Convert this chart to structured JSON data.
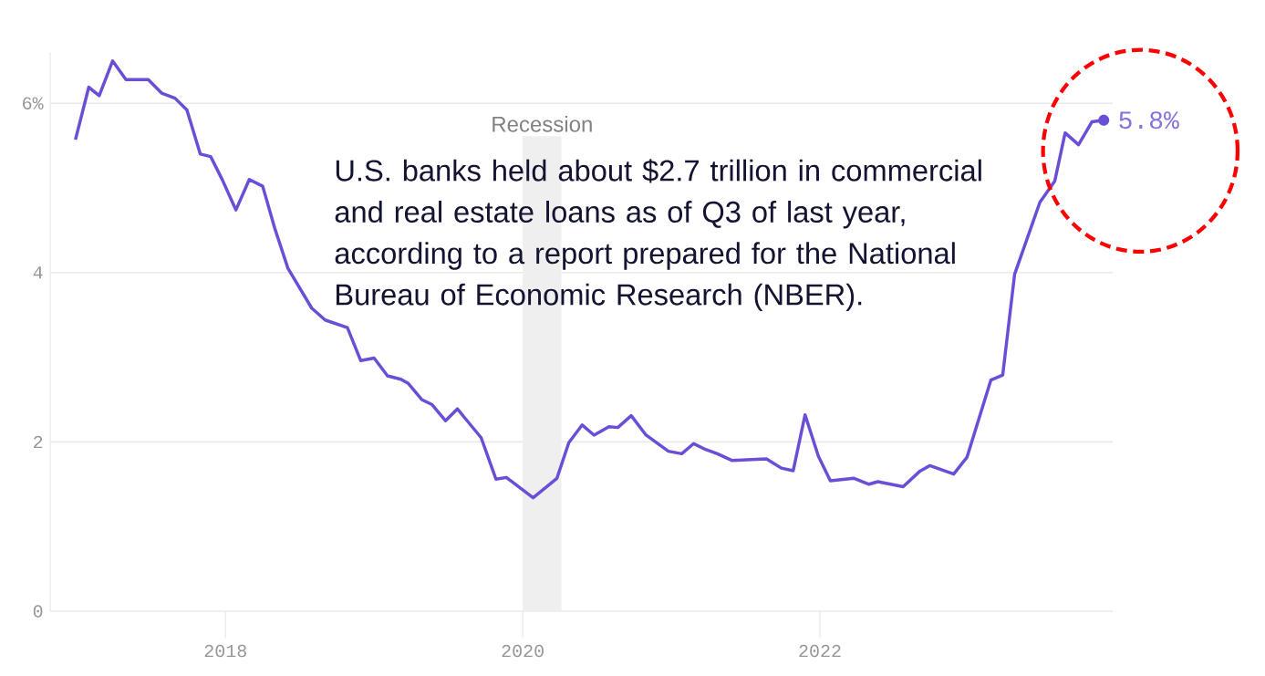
{
  "chart_data": {
    "type": "line",
    "x": [
      2016.99,
      2017.08,
      2017.15,
      2017.24,
      2017.33,
      2017.48,
      2017.57,
      2017.66,
      2017.74,
      2017.83,
      2017.9,
      2017.98,
      2018.07,
      2018.16,
      2018.25,
      2018.33,
      2018.42,
      2018.58,
      2018.67,
      2018.82,
      2018.91,
      2019.0,
      2019.09,
      2019.18,
      2019.23,
      2019.32,
      2019.39,
      2019.48,
      2019.56,
      2019.72,
      2019.82,
      2019.89,
      2020.07,
      2020.23,
      2020.31,
      2020.4,
      2020.48,
      2020.58,
      2020.64,
      2020.73,
      2020.83,
      2020.98,
      2021.07,
      2021.15,
      2021.23,
      2021.31,
      2021.41,
      2021.64,
      2021.74,
      2021.82,
      2021.9,
      2021.99,
      2022.07,
      2022.23,
      2022.33,
      2022.39,
      2022.56,
      2022.67,
      2022.74,
      2022.9,
      2022.99,
      2023.15,
      2023.23,
      2023.31,
      2023.48,
      2023.58,
      2023.65,
      2023.74,
      2023.83,
      2023.91
    ],
    "series": [
      {
        "color": "#6a4fd6",
        "values": [
          5.57,
          6.19,
          6.09,
          6.5,
          6.28,
          6.28,
          6.12,
          6.06,
          5.92,
          5.4,
          5.37,
          5.09,
          4.74,
          5.1,
          5.02,
          4.53,
          4.05,
          3.58,
          3.44,
          3.35,
          2.96,
          2.99,
          2.78,
          2.74,
          2.69,
          2.5,
          2.44,
          2.25,
          2.39,
          2.05,
          1.56,
          1.58,
          1.34,
          1.57,
          1.99,
          2.2,
          2.08,
          2.18,
          2.17,
          2.31,
          2.08,
          1.89,
          1.86,
          1.98,
          1.91,
          1.86,
          1.78,
          1.8,
          1.69,
          1.66,
          2.32,
          1.83,
          1.54,
          1.57,
          1.5,
          1.53,
          1.47,
          1.65,
          1.72,
          1.62,
          1.82,
          2.73,
          2.79,
          3.98,
          4.83,
          5.08,
          5.65,
          5.51,
          5.78,
          5.8
        ]
      }
    ],
    "xlim": [
      2016.82,
      2023.97
    ],
    "ylim": [
      0,
      6.6
    ],
    "xticks": [
      2018,
      2020,
      2022
    ],
    "yticks": [
      0,
      2,
      4,
      {
        "value": 6,
        "label": "6%"
      }
    ],
    "grid": "y",
    "marker": "none",
    "line_style": "solid",
    "bands": [
      {
        "axis": "x",
        "from": 2020.0,
        "to": 2020.26,
        "label": "Recession",
        "color": "#efefef"
      }
    ],
    "annotations": [
      {
        "text": "5.8%",
        "x": 2023.91,
        "y": 5.8
      },
      "U.S. banks held about $2.7 trillion in commercial and real estate loans as of Q3 of last year, according to a report prepared for the National Bureau of Economic Research (NBER)."
    ]
  }
}
